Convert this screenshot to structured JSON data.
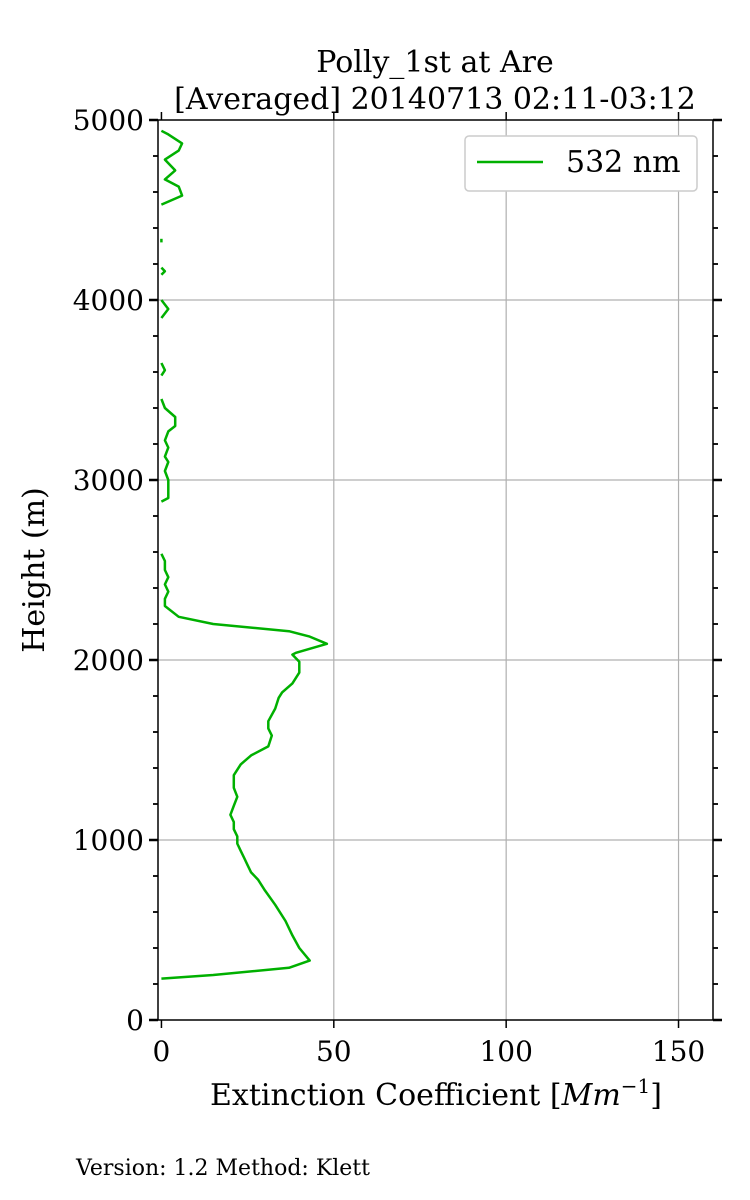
{
  "chart_data": {
    "type": "line",
    "title_lines": [
      "Polly_1st at Are",
      "[Averaged] 20140713 02:11-03:12"
    ],
    "xlabel": "Extinction Coefficient [",
    "xlabel_unit": "Mm",
    "xlabel_exp": "−1",
    "xlabel_end": "]",
    "ylabel": "Height (m)",
    "xlim": [
      -1,
      160
    ],
    "ylim": [
      0,
      5000
    ],
    "xticks": [
      0,
      50,
      100,
      150
    ],
    "xtick_labels": [
      "0",
      "50",
      "100",
      "150"
    ],
    "yticks": [
      0,
      1000,
      2000,
      3000,
      4000,
      5000
    ],
    "ytick_labels": [
      "0",
      "1000",
      "2000",
      "3000",
      "4000",
      "5000"
    ],
    "grid": true,
    "legend_position": "top-right",
    "series": [
      {
        "name": "532 nm",
        "color": "#00b000",
        "segments": [
          [
            [
              0,
              230
            ],
            [
              15,
              250
            ],
            [
              37,
              290
            ],
            [
              43,
              330
            ],
            [
              40,
              400
            ],
            [
              38,
              470
            ],
            [
              36,
              550
            ],
            [
              33,
              640
            ],
            [
              30,
              720
            ],
            [
              28,
              780
            ],
            [
              26,
              820
            ],
            [
              25,
              860
            ],
            [
              24,
              900
            ],
            [
              23,
              940
            ],
            [
              22,
              980
            ],
            [
              22,
              1020
            ],
            [
              21,
              1060
            ],
            [
              21,
              1100
            ],
            [
              20,
              1140
            ],
            [
              21,
              1190
            ],
            [
              22,
              1240
            ],
            [
              21,
              1290
            ],
            [
              21,
              1360
            ],
            [
              23,
              1420
            ],
            [
              26,
              1470
            ],
            [
              31,
              1520
            ],
            [
              32,
              1580
            ],
            [
              31,
              1620
            ],
            [
              31,
              1660
            ],
            [
              33,
              1730
            ],
            [
              34,
              1790
            ],
            [
              35,
              1820
            ],
            [
              38,
              1870
            ],
            [
              40,
              1930
            ],
            [
              40,
              1990
            ],
            [
              38,
              2030
            ],
            [
              39,
              2040
            ],
            [
              48,
              2090
            ],
            [
              43,
              2130
            ],
            [
              37,
              2160
            ],
            [
              15,
              2200
            ],
            [
              5,
              2240
            ],
            [
              1,
              2300
            ],
            [
              1,
              2340
            ],
            [
              2,
              2380
            ],
            [
              1,
              2420
            ],
            [
              2,
              2460
            ],
            [
              1,
              2500
            ],
            [
              1,
              2550
            ],
            [
              0,
              2590
            ]
          ],
          [
            [
              0,
              2880
            ],
            [
              2,
              2900
            ],
            [
              2,
              2950
            ],
            [
              2,
              3000
            ],
            [
              1,
              3050
            ],
            [
              2,
              3100
            ],
            [
              1,
              3130
            ],
            [
              2,
              3180
            ],
            [
              1,
              3220
            ],
            [
              2,
              3270
            ],
            [
              4,
              3300
            ],
            [
              4,
              3350
            ],
            [
              1,
              3400
            ],
            [
              0,
              3450
            ]
          ],
          [
            [
              0,
              3580
            ],
            [
              1,
              3610
            ],
            [
              0,
              3650
            ]
          ],
          [
            [
              0,
              3900
            ],
            [
              2,
              3950
            ],
            [
              0,
              4000
            ]
          ],
          [
            [
              0,
              4140
            ],
            [
              1,
              4160
            ],
            [
              0,
              4180
            ]
          ],
          [
            [
              0,
              4320
            ],
            [
              0,
              4340
            ]
          ],
          [
            [
              0,
              4530
            ],
            [
              6,
              4580
            ],
            [
              5,
              4630
            ],
            [
              1,
              4670
            ],
            [
              4,
              4720
            ],
            [
              1,
              4780
            ],
            [
              5,
              4830
            ],
            [
              6,
              4870
            ],
            [
              2,
              4920
            ],
            [
              0,
              4940
            ]
          ]
        ]
      }
    ]
  },
  "footer": {
    "text": "Version: 1.2  Method: Klett"
  }
}
